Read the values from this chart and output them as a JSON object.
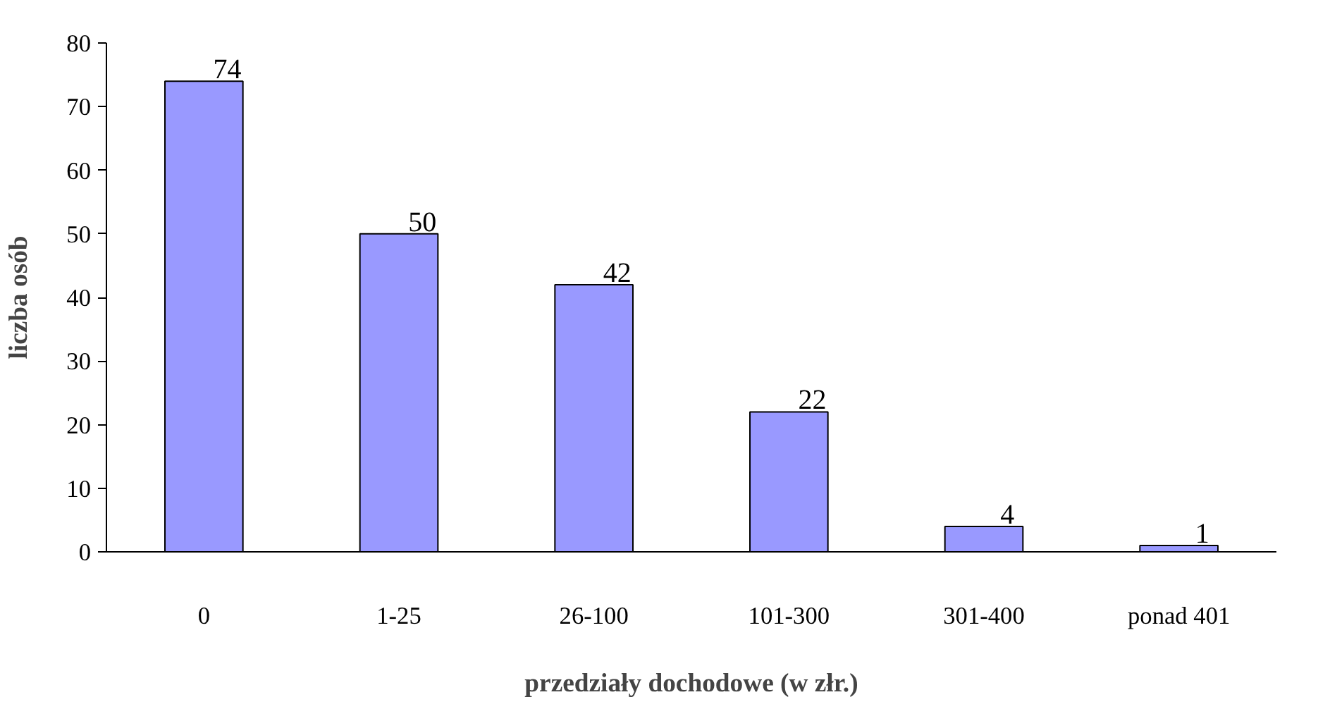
{
  "chart_data": {
    "type": "bar",
    "xlabel": "przedziały dochodowe (w złr.)",
    "ylabel": "liczba osób",
    "categories": [
      "0",
      "1-25",
      "26-100",
      "101-300",
      "301-400",
      "ponad 401"
    ],
    "values": [
      74,
      50,
      42,
      22,
      4,
      1
    ],
    "color": "#9999ff",
    "ylim": [
      0,
      80
    ],
    "yticks": [
      0,
      10,
      20,
      30,
      40,
      50,
      60,
      70,
      80
    ],
    "grid": false,
    "data_labels": true
  }
}
